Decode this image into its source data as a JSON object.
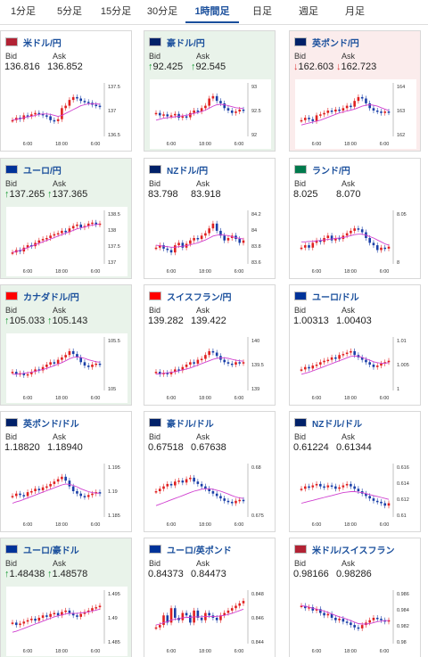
{
  "tabs": [
    {
      "label": "1分足",
      "active": false
    },
    {
      "label": "5分足",
      "active": false
    },
    {
      "label": "15分足",
      "active": false
    },
    {
      "label": "30分足",
      "active": false
    },
    {
      "label": "1時間足",
      "active": true
    },
    {
      "label": "日足",
      "active": false
    },
    {
      "label": "週足",
      "active": false
    },
    {
      "label": "月足",
      "active": false
    }
  ],
  "labels": {
    "bid": "Bid",
    "ask": "Ask"
  },
  "colors": {
    "tab_active": "#1a4f9c",
    "up_arrow": "#1e9c3a",
    "down_arrow": "#dd3333",
    "card_up_bg": "#e9f3ea",
    "card_down_bg": "#fbecec",
    "candle_up": "#e02020",
    "candle_down": "#1a3fa8",
    "ma_line": "#d040d0"
  },
  "pairs": [
    {
      "name": "米ドル/円",
      "flag": "us-jp",
      "bid": "136.816",
      "ask": "136.852",
      "direction": "none",
      "chart": {
        "ticks": [
          "137.5",
          "137",
          "136.5"
        ],
        "xticks": [
          "6:00",
          "18:00",
          "6:00"
        ],
        "series": [
          0.3,
          0.35,
          0.32,
          0.4,
          0.38,
          0.42,
          0.45,
          0.43,
          0.4,
          0.38,
          0.3,
          0.28,
          0.32,
          0.55,
          0.6,
          0.72,
          0.78,
          0.75,
          0.7,
          0.68,
          0.66,
          0.62,
          0.6,
          0.58
        ],
        "ma": [
          0.3,
          0.32,
          0.33,
          0.35,
          0.37,
          0.38,
          0.4,
          0.42,
          0.43,
          0.43,
          0.42,
          0.4,
          0.38,
          0.4,
          0.44,
          0.48,
          0.52,
          0.56,
          0.6,
          0.62,
          0.64,
          0.64,
          0.64,
          0.63
        ]
      }
    },
    {
      "name": "豪ドル/円",
      "flag": "au-jp",
      "bid": "92.425",
      "ask": "92.545",
      "direction": "up",
      "chart": {
        "ticks": [
          "93",
          "92.5",
          "92"
        ],
        "xticks": [
          "6:00",
          "18:00",
          "6:00"
        ],
        "series": [
          0.45,
          0.4,
          0.42,
          0.38,
          0.4,
          0.43,
          0.35,
          0.38,
          0.36,
          0.45,
          0.5,
          0.48,
          0.55,
          0.6,
          0.75,
          0.8,
          0.7,
          0.65,
          0.55,
          0.5,
          0.45,
          0.48,
          0.52,
          0.5
        ],
        "ma": [
          0.3,
          0.32,
          0.34,
          0.35,
          0.36,
          0.37,
          0.38,
          0.39,
          0.4,
          0.42,
          0.44,
          0.46,
          0.48,
          0.51,
          0.55,
          0.59,
          0.62,
          0.63,
          0.62,
          0.6,
          0.58,
          0.56,
          0.55,
          0.54
        ]
      }
    },
    {
      "name": "英ポンド/円",
      "flag": "gb-jp",
      "bid": "162.603",
      "ask": "162.723",
      "direction": "down",
      "chart": {
        "ticks": [
          "164",
          "163",
          "162"
        ],
        "xticks": [
          "6:00",
          "18:00",
          "6:00"
        ],
        "series": [
          0.3,
          0.35,
          0.32,
          0.28,
          0.4,
          0.42,
          0.45,
          0.5,
          0.48,
          0.52,
          0.5,
          0.55,
          0.6,
          0.58,
          0.7,
          0.78,
          0.75,
          0.65,
          0.55,
          0.5,
          0.48,
          0.45,
          0.48,
          0.46
        ],
        "ma": [
          0.2,
          0.22,
          0.24,
          0.26,
          0.28,
          0.3,
          0.33,
          0.36,
          0.39,
          0.42,
          0.45,
          0.47,
          0.49,
          0.51,
          0.53,
          0.56,
          0.59,
          0.61,
          0.62,
          0.61,
          0.59,
          0.56,
          0.53,
          0.5
        ]
      }
    },
    {
      "name": "ユーロ/円",
      "flag": "eu-jp",
      "bid": "137.265",
      "ask": "137.365",
      "direction": "up",
      "chart": {
        "ticks": [
          "138.5",
          "138",
          "137.5",
          "137"
        ],
        "xticks": [
          "6:00",
          "18:00",
          "6:00"
        ],
        "series": [
          0.2,
          0.25,
          0.22,
          0.3,
          0.35,
          0.33,
          0.4,
          0.45,
          0.48,
          0.5,
          0.55,
          0.58,
          0.6,
          0.65,
          0.62,
          0.7,
          0.75,
          0.78,
          0.72,
          0.75,
          0.8,
          0.82,
          0.78,
          0.8
        ],
        "ma": [
          0.2,
          0.22,
          0.24,
          0.27,
          0.3,
          0.33,
          0.36,
          0.39,
          0.42,
          0.45,
          0.48,
          0.51,
          0.54,
          0.57,
          0.6,
          0.63,
          0.66,
          0.69,
          0.71,
          0.73,
          0.75,
          0.77,
          0.78,
          0.79
        ]
      }
    },
    {
      "name": "NZドル/円",
      "flag": "nz-jp",
      "bid": "83.798",
      "ask": "83.918",
      "direction": "none",
      "chart": {
        "ticks": [
          "84.2",
          "84",
          "83.8",
          "83.6"
        ],
        "xticks": [
          "6:00",
          "18:00",
          "6:00"
        ],
        "series": [
          0.3,
          0.35,
          0.28,
          0.25,
          0.2,
          0.35,
          0.4,
          0.3,
          0.38,
          0.45,
          0.5,
          0.48,
          0.55,
          0.6,
          0.7,
          0.8,
          0.65,
          0.55,
          0.45,
          0.5,
          0.55,
          0.48,
          0.4,
          0.45
        ],
        "ma": [
          0.35,
          0.34,
          0.33,
          0.32,
          0.31,
          0.31,
          0.32,
          0.33,
          0.34,
          0.36,
          0.38,
          0.4,
          0.43,
          0.46,
          0.5,
          0.54,
          0.56,
          0.57,
          0.56,
          0.55,
          0.53,
          0.51,
          0.49,
          0.48
        ]
      }
    },
    {
      "name": "ランド/円",
      "flag": "za-jp",
      "bid": "8.025",
      "ask": "8.070",
      "direction": "none",
      "chart": {
        "ticks": [
          "8.05",
          "8"
        ],
        "xticks": [
          "6:00",
          "18:00",
          "6:00"
        ],
        "series": [
          0.3,
          0.35,
          0.3,
          0.4,
          0.45,
          0.42,
          0.5,
          0.55,
          0.45,
          0.5,
          0.48,
          0.55,
          0.6,
          0.65,
          0.7,
          0.68,
          0.62,
          0.5,
          0.4,
          0.35,
          0.25,
          0.3,
          0.28,
          0.32
        ],
        "ma": [
          0.42,
          0.42,
          0.43,
          0.43,
          0.44,
          0.45,
          0.46,
          0.47,
          0.48,
          0.49,
          0.5,
          0.51,
          0.53,
          0.55,
          0.57,
          0.58,
          0.58,
          0.56,
          0.53,
          0.5,
          0.46,
          0.42,
          0.38,
          0.35
        ]
      }
    },
    {
      "name": "カナダドル/円",
      "flag": "ca-jp",
      "bid": "105.033",
      "ask": "105.143",
      "direction": "up",
      "chart": {
        "ticks": [
          "105.5",
          "105"
        ],
        "xticks": [
          "6:00",
          "18:00",
          "6:00"
        ],
        "series": [
          0.35,
          0.3,
          0.32,
          0.28,
          0.3,
          0.35,
          0.4,
          0.38,
          0.45,
          0.5,
          0.55,
          0.52,
          0.6,
          0.65,
          0.7,
          0.78,
          0.72,
          0.65,
          0.55,
          0.48,
          0.45,
          0.5,
          0.52,
          0.5
        ],
        "ma": [
          0.3,
          0.3,
          0.31,
          0.32,
          0.33,
          0.34,
          0.36,
          0.38,
          0.4,
          0.42,
          0.45,
          0.48,
          0.51,
          0.54,
          0.58,
          0.62,
          0.65,
          0.66,
          0.65,
          0.63,
          0.6,
          0.58,
          0.56,
          0.55
        ]
      }
    },
    {
      "name": "スイスフラン/円",
      "flag": "ch-jp",
      "bid": "139.282",
      "ask": "139.422",
      "direction": "none",
      "chart": {
        "ticks": [
          "140",
          "139.5",
          "139"
        ],
        "xticks": [
          "6:00",
          "18:00",
          "6:00"
        ],
        "series": [
          0.35,
          0.3,
          0.33,
          0.3,
          0.35,
          0.4,
          0.38,
          0.45,
          0.5,
          0.55,
          0.52,
          0.6,
          0.62,
          0.7,
          0.78,
          0.75,
          0.68,
          0.6,
          0.55,
          0.52,
          0.5,
          0.55,
          0.53,
          0.55
        ],
        "ma": [
          0.3,
          0.31,
          0.32,
          0.33,
          0.34,
          0.35,
          0.37,
          0.39,
          0.41,
          0.43,
          0.46,
          0.49,
          0.52,
          0.55,
          0.58,
          0.61,
          0.63,
          0.64,
          0.64,
          0.63,
          0.61,
          0.59,
          0.58,
          0.57
        ]
      }
    },
    {
      "name": "ユーロ/ドル",
      "flag": "eu-us",
      "bid": "1.00313",
      "ask": "1.00403",
      "direction": "none",
      "chart": {
        "ticks": [
          "1.01",
          "1.005",
          "1"
        ],
        "xticks": [
          "6:00",
          "18:00",
          "6:00"
        ],
        "series": [
          0.4,
          0.45,
          0.42,
          0.48,
          0.5,
          0.55,
          0.58,
          0.6,
          0.65,
          0.62,
          0.7,
          0.72,
          0.75,
          0.78,
          0.7,
          0.65,
          0.6,
          0.55,
          0.5,
          0.45,
          0.48,
          0.52,
          0.55,
          0.58
        ],
        "ma": [
          0.3,
          0.32,
          0.34,
          0.37,
          0.4,
          0.43,
          0.46,
          0.49,
          0.52,
          0.55,
          0.58,
          0.61,
          0.64,
          0.67,
          0.68,
          0.67,
          0.65,
          0.62,
          0.59,
          0.56,
          0.54,
          0.53,
          0.53,
          0.54
        ]
      }
    },
    {
      "name": "英ポンド/ドル",
      "flag": "gb-us",
      "bid": "1.18820",
      "ask": "1.18940",
      "direction": "none",
      "chart": {
        "ticks": [
          "1.195",
          "1.19",
          "1.185"
        ],
        "xticks": [
          "6:00",
          "18:00",
          "6:00"
        ],
        "series": [
          0.4,
          0.45,
          0.42,
          0.4,
          0.48,
          0.5,
          0.55,
          0.52,
          0.58,
          0.6,
          0.65,
          0.7,
          0.75,
          0.8,
          0.72,
          0.6,
          0.5,
          0.45,
          0.4,
          0.38,
          0.42,
          0.45,
          0.48,
          0.45
        ],
        "ma": [
          0.25,
          0.28,
          0.3,
          0.33,
          0.36,
          0.39,
          0.42,
          0.45,
          0.48,
          0.51,
          0.54,
          0.57,
          0.6,
          0.63,
          0.65,
          0.64,
          0.62,
          0.59,
          0.55,
          0.52,
          0.49,
          0.47,
          0.46,
          0.46
        ]
      }
    },
    {
      "name": "豪ドル/ドル",
      "flag": "au-us",
      "bid": "0.67518",
      "ask": "0.67638",
      "direction": "none",
      "chart": {
        "ticks": [
          "0.68",
          "0.675"
        ],
        "xticks": [
          "6:00",
          "18:00",
          "6:00"
        ],
        "series": [
          0.5,
          0.55,
          0.6,
          0.65,
          0.62,
          0.7,
          0.72,
          0.68,
          0.75,
          0.78,
          0.7,
          0.65,
          0.6,
          0.55,
          0.5,
          0.45,
          0.4,
          0.35,
          0.3,
          0.28,
          0.25,
          0.3,
          0.32,
          0.3
        ],
        "ma": [
          0.2,
          0.23,
          0.26,
          0.29,
          0.32,
          0.35,
          0.38,
          0.41,
          0.44,
          0.47,
          0.5,
          0.52,
          0.54,
          0.55,
          0.55,
          0.54,
          0.52,
          0.5,
          0.47,
          0.44,
          0.41,
          0.38,
          0.36,
          0.35
        ]
      }
    },
    {
      "name": "NZドル/ドル",
      "flag": "nz-us",
      "bid": "0.61224",
      "ask": "0.61344",
      "direction": "none",
      "chart": {
        "ticks": [
          "0.616",
          "0.614",
          "0.612",
          "0.61"
        ],
        "xticks": [
          "6:00",
          "18:00",
          "6:00"
        ],
        "series": [
          0.55,
          0.6,
          0.58,
          0.62,
          0.65,
          0.6,
          0.58,
          0.62,
          0.6,
          0.55,
          0.58,
          0.62,
          0.65,
          0.6,
          0.55,
          0.5,
          0.45,
          0.4,
          0.35,
          0.3,
          0.28,
          0.25,
          0.2,
          0.25
        ],
        "ma": [
          0.25,
          0.27,
          0.29,
          0.31,
          0.33,
          0.35,
          0.37,
          0.39,
          0.41,
          0.43,
          0.45,
          0.47,
          0.48,
          0.49,
          0.49,
          0.48,
          0.47,
          0.45,
          0.43,
          0.41,
          0.39,
          0.37,
          0.35,
          0.33
        ]
      }
    },
    {
      "name": "ユーロ/豪ドル",
      "flag": "eu-au",
      "bid": "1.48438",
      "ask": "1.48578",
      "direction": "up",
      "chart": {
        "ticks": [
          "1.495",
          "1.49",
          "1.485"
        ],
        "xticks": [
          "6:00",
          "18:00",
          "6:00"
        ],
        "series": [
          0.4,
          0.35,
          0.38,
          0.42,
          0.45,
          0.48,
          0.44,
          0.5,
          0.55,
          0.52,
          0.58,
          0.6,
          0.55,
          0.62,
          0.65,
          0.6,
          0.55,
          0.52,
          0.58,
          0.62,
          0.65,
          0.7,
          0.72,
          0.75
        ],
        "ma": [
          0.2,
          0.22,
          0.25,
          0.28,
          0.31,
          0.34,
          0.37,
          0.4,
          0.43,
          0.46,
          0.49,
          0.52,
          0.54,
          0.56,
          0.58,
          0.59,
          0.59,
          0.59,
          0.6,
          0.61,
          0.62,
          0.64,
          0.66,
          0.68
        ]
      }
    },
    {
      "name": "ユーロ/英ポンド",
      "flag": "eu-gb",
      "bid": "0.84373",
      "ask": "0.84473",
      "direction": "none",
      "chart": {
        "ticks": [
          "0.848",
          "0.846",
          "0.844"
        ],
        "xticks": [
          "6:00",
          "18:00",
          "6:00"
        ],
        "series": [
          0.3,
          0.35,
          0.55,
          0.4,
          0.7,
          0.5,
          0.45,
          0.6,
          0.55,
          0.4,
          0.65,
          0.5,
          0.45,
          0.6,
          0.55,
          0.5,
          0.45,
          0.55,
          0.6,
          0.65,
          0.7,
          0.75,
          0.8,
          0.85
        ],
        "ma": [
          0.35,
          0.37,
          0.4,
          0.42,
          0.45,
          0.47,
          0.48,
          0.5,
          0.51,
          0.51,
          0.52,
          0.52,
          0.52,
          0.53,
          0.53,
          0.53,
          0.53,
          0.54,
          0.55,
          0.57,
          0.59,
          0.62,
          0.65,
          0.68
        ]
      }
    },
    {
      "name": "米ドル/スイスフラン",
      "flag": "us-ch",
      "bid": "0.98166",
      "ask": "0.98286",
      "direction": "none",
      "chart": {
        "ticks": [
          "0.986",
          "0.984",
          "0.982",
          "0.98"
        ],
        "xticks": [
          "6:00",
          "18:00",
          "6:00"
        ],
        "series": [
          0.75,
          0.7,
          0.72,
          0.65,
          0.68,
          0.6,
          0.55,
          0.58,
          0.5,
          0.45,
          0.48,
          0.42,
          0.4,
          0.35,
          0.3,
          0.28,
          0.35,
          0.4,
          0.45,
          0.5,
          0.48,
          0.45,
          0.42,
          0.45
        ],
        "ma": [
          0.75,
          0.74,
          0.72,
          0.7,
          0.68,
          0.66,
          0.64,
          0.61,
          0.58,
          0.55,
          0.52,
          0.5,
          0.47,
          0.44,
          0.41,
          0.38,
          0.37,
          0.37,
          0.38,
          0.4,
          0.42,
          0.43,
          0.44,
          0.44
        ]
      }
    }
  ]
}
